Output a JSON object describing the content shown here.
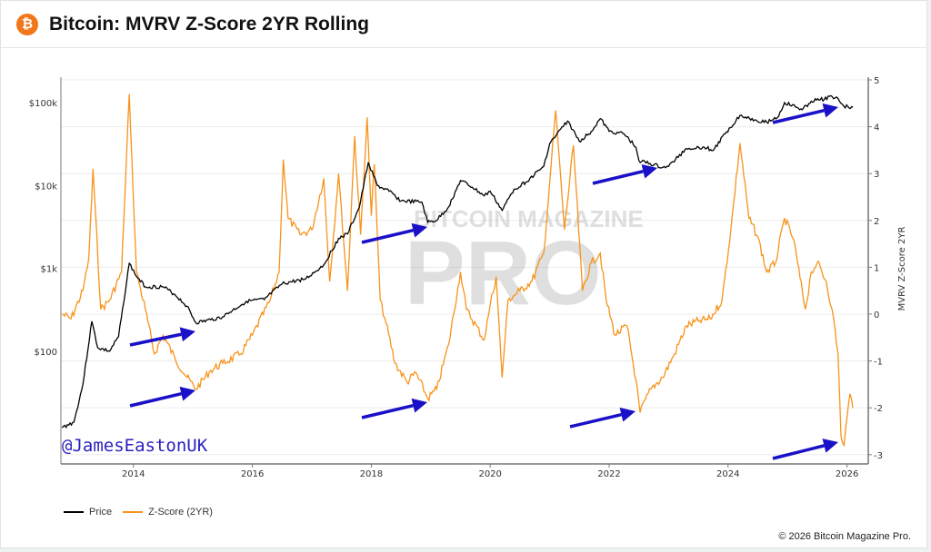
{
  "header": {
    "title": "Bitcoin: MVRV Z-Score 2YR Rolling",
    "icon": "bitcoin-icon",
    "icon_glyph": "₿"
  },
  "watermark": {
    "line1": "BITCOIN MAGAZINE",
    "line2": "PRO"
  },
  "handle": "@JamesEastonUK",
  "copyright": "© 2026 Bitcoin Magazine Pro.",
  "colors": {
    "price": "#000000",
    "zscore": "#f7931a",
    "arrow": "#1a10c8",
    "grid": "#ececec"
  },
  "chart_data": {
    "type": "line",
    "title": "Bitcoin: MVRV Z-Score 2YR Rolling",
    "x_ticks": [
      "2014",
      "2016",
      "2018",
      "2020",
      "2022",
      "2024",
      "2026"
    ],
    "xlim": [
      2012.78,
      2026.3
    ],
    "y_left": {
      "scale": "log",
      "ticks": [
        {
          "value": 100,
          "label": "$100"
        },
        {
          "value": 1000,
          "label": "$1k"
        },
        {
          "value": 10000,
          "label": "$10k"
        },
        {
          "value": 100000,
          "label": "$100k"
        }
      ]
    },
    "y_right": {
      "label": "MVRV Z-Score 2YR",
      "ticks": [
        "-3",
        "-2",
        "-1",
        "0",
        "1",
        "2",
        "3",
        "4",
        "5"
      ],
      "ylim": [
        -3.06,
        5.05
      ]
    },
    "grid": true,
    "legend": {
      "placement": "bottom-left",
      "items": [
        "Price",
        "Z-Score (2YR)"
      ]
    },
    "series": [
      {
        "name": "Price",
        "axis": "left",
        "points": [
          [
            2012.8,
            12
          ],
          [
            2013.0,
            14
          ],
          [
            2013.15,
            40
          ],
          [
            2013.3,
            230
          ],
          [
            2013.4,
            110
          ],
          [
            2013.6,
            100
          ],
          [
            2013.75,
            150
          ],
          [
            2013.93,
            1150
          ],
          [
            2014.05,
            800
          ],
          [
            2014.2,
            600
          ],
          [
            2014.5,
            600
          ],
          [
            2014.7,
            480
          ],
          [
            2014.9,
            350
          ],
          [
            2015.05,
            220
          ],
          [
            2015.3,
            240
          ],
          [
            2015.5,
            260
          ],
          [
            2015.9,
            400
          ],
          [
            2016.2,
            420
          ],
          [
            2016.5,
            650
          ],
          [
            2016.9,
            750
          ],
          [
            2017.2,
            1100
          ],
          [
            2017.45,
            2300
          ],
          [
            2017.6,
            2600
          ],
          [
            2017.8,
            5500
          ],
          [
            2017.95,
            19000
          ],
          [
            2018.1,
            10000
          ],
          [
            2018.3,
            8500
          ],
          [
            2018.5,
            6500
          ],
          [
            2018.85,
            6300
          ],
          [
            2018.95,
            3600
          ],
          [
            2019.1,
            3800
          ],
          [
            2019.3,
            5500
          ],
          [
            2019.5,
            11500
          ],
          [
            2019.7,
            9500
          ],
          [
            2019.9,
            7500
          ],
          [
            2020.0,
            8500
          ],
          [
            2020.2,
            5000
          ],
          [
            2020.4,
            9000
          ],
          [
            2020.6,
            11000
          ],
          [
            2020.9,
            17000
          ],
          [
            2021.0,
            32000
          ],
          [
            2021.3,
            60000
          ],
          [
            2021.5,
            34000
          ],
          [
            2021.7,
            45000
          ],
          [
            2021.85,
            64000
          ],
          [
            2022.0,
            45000
          ],
          [
            2022.25,
            42000
          ],
          [
            2022.45,
            29000
          ],
          [
            2022.5,
            20000
          ],
          [
            2022.9,
            16500
          ],
          [
            2023.0,
            17000
          ],
          [
            2023.3,
            28000
          ],
          [
            2023.6,
            29000
          ],
          [
            2023.75,
            26500
          ],
          [
            2023.95,
            42000
          ],
          [
            2024.2,
            70000
          ],
          [
            2024.45,
            62000
          ],
          [
            2024.65,
            58000
          ],
          [
            2024.85,
            68000
          ],
          [
            2024.95,
            100000
          ],
          [
            2025.25,
            82000
          ],
          [
            2025.4,
            104000
          ],
          [
            2025.55,
            108000
          ],
          [
            2025.75,
            118000
          ],
          [
            2025.85,
            112000
          ],
          [
            2025.95,
            90000
          ],
          [
            2026.1,
            88000
          ]
        ]
      },
      {
        "name": "Z-Score (2YR)",
        "axis": "right",
        "points": [
          [
            2012.8,
            0
          ],
          [
            2012.95,
            -0.1
          ],
          [
            2013.15,
            0.5
          ],
          [
            2013.25,
            1.2
          ],
          [
            2013.32,
            3.1
          ],
          [
            2013.45,
            0.1
          ],
          [
            2013.6,
            0.3
          ],
          [
            2013.8,
            0.9
          ],
          [
            2013.93,
            4.7
          ],
          [
            2014.05,
            0.9
          ],
          [
            2014.2,
            0.1
          ],
          [
            2014.35,
            -0.85
          ],
          [
            2014.5,
            -0.45
          ],
          [
            2014.7,
            -0.95
          ],
          [
            2014.9,
            -1.35
          ],
          [
            2015.05,
            -1.6
          ],
          [
            2015.3,
            -1.2
          ],
          [
            2015.5,
            -1.05
          ],
          [
            2015.8,
            -0.85
          ],
          [
            2016.0,
            -0.45
          ],
          [
            2016.3,
            0.3
          ],
          [
            2016.45,
            0.9
          ],
          [
            2016.52,
            3.3
          ],
          [
            2016.6,
            2.05
          ],
          [
            2016.8,
            1.7
          ],
          [
            2017.0,
            1.8
          ],
          [
            2017.2,
            2.9
          ],
          [
            2017.3,
            0.7
          ],
          [
            2017.45,
            3.0
          ],
          [
            2017.6,
            0.5
          ],
          [
            2017.72,
            3.8
          ],
          [
            2017.82,
            1.7
          ],
          [
            2017.93,
            4.2
          ],
          [
            2018.0,
            2.1
          ],
          [
            2018.05,
            3.2
          ],
          [
            2018.15,
            0.3
          ],
          [
            2018.25,
            -0.2
          ],
          [
            2018.4,
            -1.05
          ],
          [
            2018.6,
            -1.45
          ],
          [
            2018.75,
            -1.25
          ],
          [
            2018.95,
            -1.8
          ],
          [
            2019.1,
            -1.6
          ],
          [
            2019.3,
            -0.65
          ],
          [
            2019.5,
            0.9
          ],
          [
            2019.6,
            0.1
          ],
          [
            2019.9,
            -0.55
          ],
          [
            2020.0,
            0.2
          ],
          [
            2020.1,
            0.8
          ],
          [
            2020.2,
            -1.35
          ],
          [
            2020.3,
            0.3
          ],
          [
            2020.5,
            0.5
          ],
          [
            2020.7,
            0.7
          ],
          [
            2020.9,
            1.3
          ],
          [
            2021.0,
            2.8
          ],
          [
            2021.1,
            4.35
          ],
          [
            2021.25,
            1.8
          ],
          [
            2021.4,
            3.6
          ],
          [
            2021.55,
            0.5
          ],
          [
            2021.7,
            1.1
          ],
          [
            2021.85,
            1.3
          ],
          [
            2021.95,
            0.3
          ],
          [
            2022.1,
            -0.45
          ],
          [
            2022.3,
            -0.25
          ],
          [
            2022.45,
            -1.4
          ],
          [
            2022.52,
            -2.1
          ],
          [
            2022.7,
            -1.6
          ],
          [
            2022.9,
            -1.35
          ],
          [
            2023.1,
            -0.85
          ],
          [
            2023.3,
            -0.25
          ],
          [
            2023.5,
            -0.15
          ],
          [
            2023.7,
            -0.1
          ],
          [
            2023.9,
            0.3
          ],
          [
            2024.05,
            1.85
          ],
          [
            2024.2,
            3.65
          ],
          [
            2024.35,
            2.05
          ],
          [
            2024.5,
            1.65
          ],
          [
            2024.65,
            0.9
          ],
          [
            2024.8,
            1.1
          ],
          [
            2024.95,
            2.05
          ],
          [
            2025.1,
            1.6
          ],
          [
            2025.3,
            0.1
          ],
          [
            2025.4,
            0.9
          ],
          [
            2025.5,
            1.1
          ],
          [
            2025.65,
            0.7
          ],
          [
            2025.75,
            0.1
          ],
          [
            2025.85,
            -0.85
          ],
          [
            2025.9,
            -2.6
          ],
          [
            2025.95,
            -2.8
          ],
          [
            2026.0,
            -2.2
          ],
          [
            2026.05,
            -1.7
          ],
          [
            2026.1,
            -2.0
          ]
        ]
      }
    ]
  }
}
